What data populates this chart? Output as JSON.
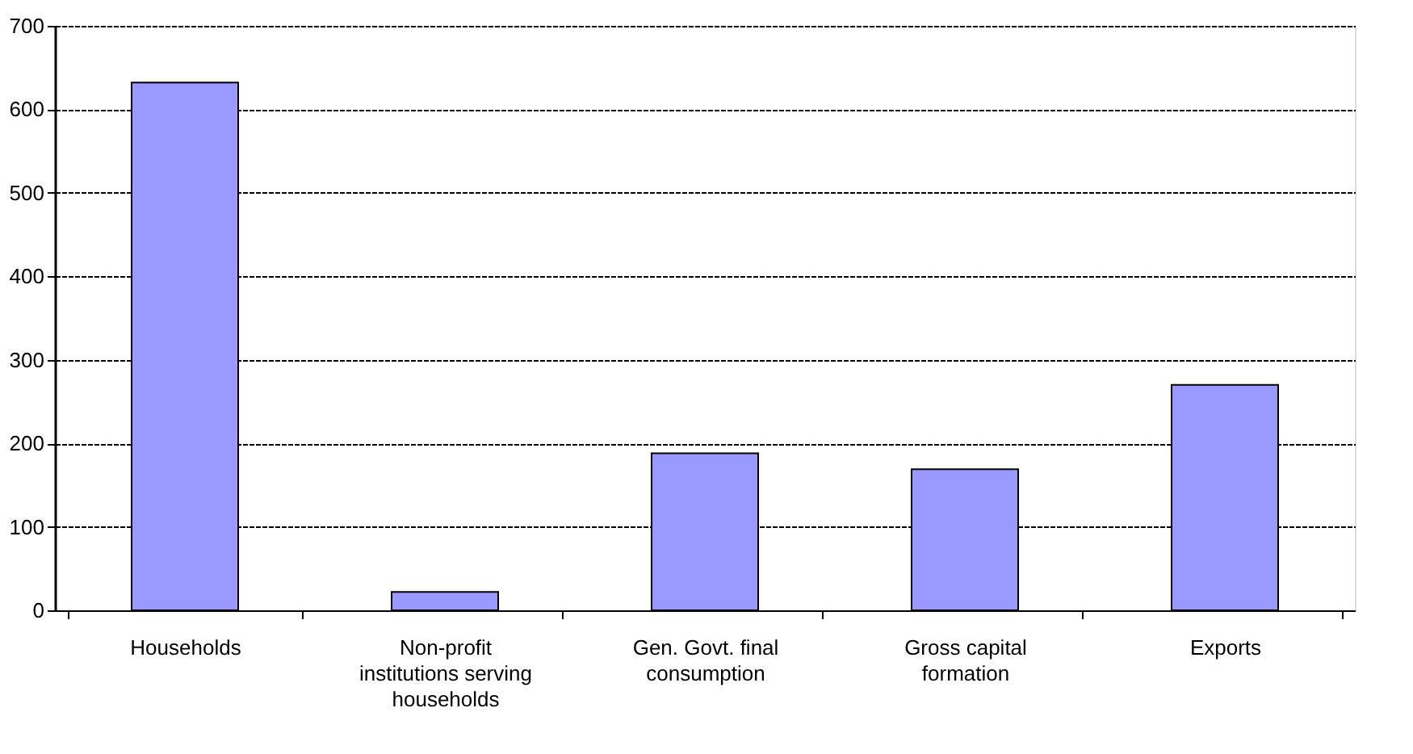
{
  "chart_data": {
    "type": "bar",
    "categories": [
      "Households",
      "Non-profit institutions serving households",
      "Gen. Govt. final consumption",
      "Gross capital formation",
      "Exports"
    ],
    "values": [
      632,
      22,
      188,
      169,
      270
    ],
    "color": "#9999ff",
    "ylim": [
      0,
      700
    ],
    "yticks": [
      0,
      100,
      200,
      300,
      400,
      500,
      600,
      700
    ],
    "grid": "y"
  }
}
